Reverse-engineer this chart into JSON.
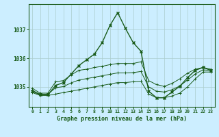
{
  "title": "Graphe pression niveau de la mer (hPa)",
  "bg_color": "#cceeff",
  "grid_color": "#aacccc",
  "line_color": "#1a5c1a",
  "x_labels": [
    "0",
    "1",
    "2",
    "3",
    "4",
    "5",
    "6",
    "7",
    "8",
    "9",
    "10",
    "11",
    "12",
    "13",
    "14",
    "15",
    "16",
    "17",
    "18",
    "19",
    "20",
    "21",
    "22",
    "23"
  ],
  "ylim": [
    1034.3,
    1037.9
  ],
  "yticks": [
    1035,
    1036,
    1037
  ],
  "main_series": [
    1034.85,
    1034.72,
    1034.72,
    1035.05,
    1035.15,
    1035.45,
    1035.75,
    1035.95,
    1036.15,
    1036.55,
    1037.15,
    1037.6,
    1037.05,
    1036.55,
    1036.25,
    1034.85,
    1034.62,
    1034.62,
    1034.82,
    1035.02,
    1035.32,
    1035.58,
    1035.68,
    1035.58
  ],
  "min_series": [
    1034.8,
    1034.7,
    1034.7,
    1034.75,
    1034.8,
    1034.85,
    1034.9,
    1034.95,
    1035.0,
    1035.05,
    1035.1,
    1035.15,
    1035.15,
    1035.18,
    1035.2,
    1034.75,
    1034.62,
    1034.62,
    1034.68,
    1034.78,
    1035.0,
    1035.28,
    1035.52,
    1035.52
  ],
  "max_series": [
    1034.95,
    1034.78,
    1034.78,
    1035.18,
    1035.22,
    1035.42,
    1035.58,
    1035.62,
    1035.68,
    1035.72,
    1035.78,
    1035.82,
    1035.82,
    1035.82,
    1035.88,
    1035.22,
    1035.08,
    1035.02,
    1035.12,
    1035.28,
    1035.48,
    1035.62,
    1035.68,
    1035.62
  ],
  "avg_series": [
    1034.88,
    1034.74,
    1034.74,
    1034.97,
    1035.01,
    1035.14,
    1035.24,
    1035.29,
    1035.34,
    1035.39,
    1035.44,
    1035.49,
    1035.49,
    1035.5,
    1035.54,
    1035.0,
    1034.85,
    1034.82,
    1034.9,
    1035.03,
    1035.24,
    1035.45,
    1035.6,
    1035.57
  ]
}
